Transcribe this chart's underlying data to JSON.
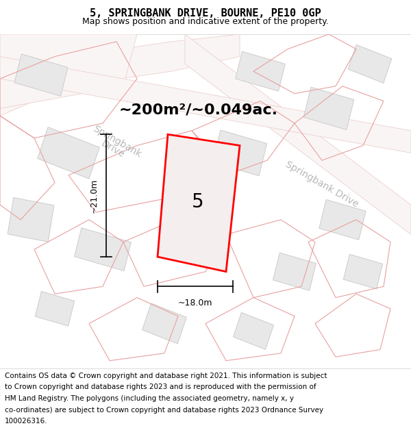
{
  "title_line1": "5, SPRINGBANK DRIVE, BOURNE, PE10 0GP",
  "title_line2": "Map shows position and indicative extent of the property.",
  "area_text": "~200m²/~0.049ac.",
  "plot_number": "5",
  "dim_width": "~18.0m",
  "dim_height": "~21.0m",
  "footer_lines": [
    "Contains OS data © Crown copyright and database right 2021. This information is subject",
    "to Crown copyright and database rights 2023 and is reproduced with the permission of",
    "HM Land Registry. The polygons (including the associated geometry, namely x, y",
    "co-ordinates) are subject to Crown copyright and database rights 2023 Ordnance Survey",
    "100026316."
  ],
  "map_bg": "#f0eded",
  "road_color": "#e8c8c8",
  "road_fill": "#faf5f5",
  "building_color": "#cccccc",
  "building_fill": "#e8e8e8",
  "plot_outline_color": "#ff0000",
  "road_outline_color": "#e8a0a0",
  "text_color_road": "#b8b8b8",
  "title_fontsize": 11,
  "subtitle_fontsize": 9,
  "area_fontsize": 16,
  "number_fontsize": 20,
  "road_label_fontsize": 10,
  "footer_fontsize": 7.5
}
